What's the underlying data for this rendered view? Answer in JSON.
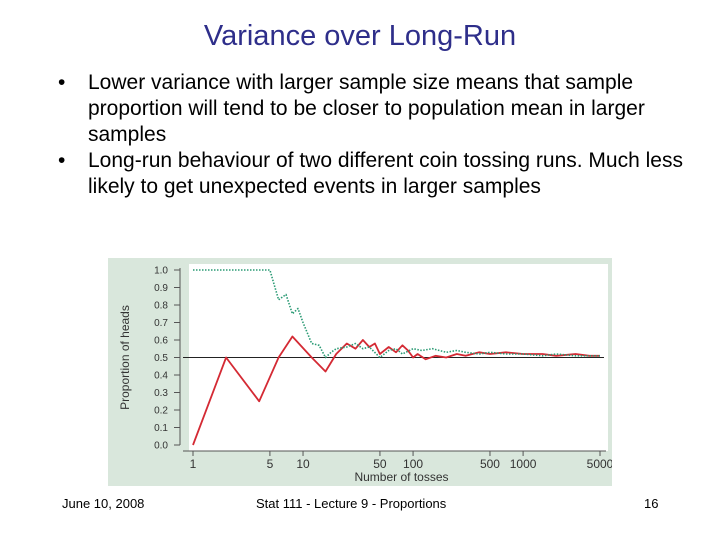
{
  "slide": {
    "title": "Variance over Long-Run",
    "bullets": [
      "Lower variance with larger sample size means that sample proportion will tend to be closer to population mean in larger samples",
      "Long-run behaviour of two different coin tossing runs. Much less likely to get unexpected events in larger samples"
    ],
    "bullet_symbol": "•"
  },
  "footer": {
    "date": "June 10, 2008",
    "course": "Stat 111 - Lecture 9 - Proportions",
    "page": "16"
  },
  "chart_data": {
    "type": "line",
    "xlabel": "Number of tosses",
    "ylabel": "Proportion of heads",
    "x_scale": "log",
    "xlim": [
      1,
      5000
    ],
    "ylim": [
      0,
      1.0
    ],
    "x_ticks": [
      1,
      5,
      10,
      50,
      100,
      500,
      1000,
      5000
    ],
    "x_tick_labels": [
      "1",
      "5",
      "10",
      "50",
      "100",
      "500",
      "1000",
      "5000"
    ],
    "y_ticks": [
      0.0,
      0.1,
      0.2,
      0.3,
      0.4,
      0.5,
      0.6,
      0.7,
      0.8,
      0.9,
      1.0
    ],
    "y_tick_labels": [
      "0.0",
      "0.1",
      "0.2",
      "0.3",
      "0.4",
      "0.5",
      "0.6",
      "0.7",
      "0.8",
      "0.9",
      "1.0"
    ],
    "reference_line": 0.5,
    "background_color": "#d9e7dc",
    "series": [
      {
        "color": "#d42a34",
        "style": "solid",
        "x": [
          1,
          2,
          4,
          6,
          8,
          12,
          16,
          20,
          25,
          30,
          35,
          40,
          45,
          50,
          60,
          70,
          80,
          90,
          100,
          110,
          130,
          160,
          200,
          250,
          300,
          400,
          500,
          700,
          1000,
          1500,
          2000,
          3000,
          4000,
          5000
        ],
        "y": [
          0.0,
          0.5,
          0.25,
          0.5,
          0.62,
          0.5,
          0.42,
          0.52,
          0.58,
          0.55,
          0.6,
          0.56,
          0.58,
          0.52,
          0.56,
          0.53,
          0.57,
          0.54,
          0.5,
          0.52,
          0.49,
          0.51,
          0.5,
          0.52,
          0.51,
          0.53,
          0.52,
          0.53,
          0.52,
          0.52,
          0.51,
          0.52,
          0.51,
          0.51
        ]
      },
      {
        "color": "#2a9a74",
        "style": "dotted",
        "x": [
          1,
          2,
          3,
          4,
          5,
          6,
          7,
          8,
          9,
          10,
          12,
          14,
          16,
          18,
          20,
          25,
          30,
          35,
          40,
          50,
          60,
          70,
          80,
          100,
          120,
          150,
          200,
          250,
          300,
          400,
          500,
          700,
          1000,
          1500,
          2000,
          3000,
          5000
        ],
        "y": [
          1.0,
          1.0,
          1.0,
          1.0,
          1.0,
          0.83,
          0.86,
          0.75,
          0.78,
          0.7,
          0.58,
          0.57,
          0.5,
          0.53,
          0.55,
          0.56,
          0.58,
          0.55,
          0.56,
          0.5,
          0.54,
          0.55,
          0.52,
          0.55,
          0.54,
          0.55,
          0.53,
          0.54,
          0.53,
          0.52,
          0.53,
          0.52,
          0.52,
          0.51,
          0.52,
          0.51,
          0.51
        ]
      }
    ]
  }
}
